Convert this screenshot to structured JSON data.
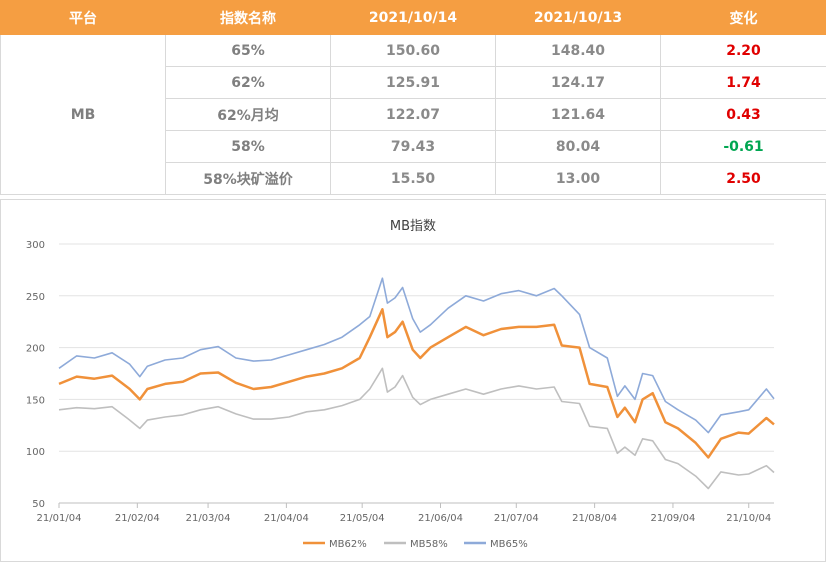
{
  "table": {
    "headers": [
      "平台",
      "指数名称",
      "2021/10/14",
      "2021/10/13",
      "变化"
    ],
    "platform": "MB",
    "rows": [
      {
        "name": "65%",
        "v1": "150.60",
        "v2": "148.40",
        "chg": "2.20",
        "dir": "up"
      },
      {
        "name": "62%",
        "v1": "125.91",
        "v2": "124.17",
        "chg": "1.74",
        "dir": "up"
      },
      {
        "name": "62%月均",
        "v1": "122.07",
        "v2": "121.64",
        "chg": "0.43",
        "dir": "up"
      },
      {
        "name": "58%",
        "v1": "79.43",
        "v2": "80.04",
        "chg": "-0.61",
        "dir": "down"
      },
      {
        "name": "58%块矿溢价",
        "v1": "15.50",
        "v2": "13.00",
        "chg": "2.50",
        "dir": "up"
      }
    ]
  },
  "colors": {
    "header_bg": "#f59e42",
    "up": "#e00000",
    "down": "#00a651",
    "mb62": "#f0913a",
    "mb58": "#bfbfbf",
    "mb65": "#8eaad9"
  },
  "chart_data": {
    "type": "line",
    "title": "MB指数",
    "x_tick_labels": [
      "21/01/04",
      "21/02/04",
      "21/03/04",
      "21/04/04",
      "21/05/04",
      "21/06/04",
      "21/07/04",
      "21/08/04",
      "21/09/04",
      "21/10/04"
    ],
    "x_range": [
      "2021-01-04",
      "2021-10-14"
    ],
    "ylim": [
      50,
      300
    ],
    "y_ticks": [
      50,
      100,
      150,
      200,
      250,
      300
    ],
    "grid": "horizontal",
    "legend_position": "bottom",
    "series": [
      {
        "name": "MB62%",
        "color": "#f0913a",
        "points": [
          [
            "2021-01-04",
            165
          ],
          [
            "2021-01-11",
            172
          ],
          [
            "2021-01-18",
            170
          ],
          [
            "2021-01-25",
            173
          ],
          [
            "2021-02-01",
            160
          ],
          [
            "2021-02-05",
            150
          ],
          [
            "2021-02-08",
            160
          ],
          [
            "2021-02-15",
            165
          ],
          [
            "2021-02-22",
            167
          ],
          [
            "2021-03-01",
            175
          ],
          [
            "2021-03-08",
            176
          ],
          [
            "2021-03-15",
            166
          ],
          [
            "2021-03-22",
            160
          ],
          [
            "2021-03-29",
            162
          ],
          [
            "2021-04-05",
            167
          ],
          [
            "2021-04-12",
            172
          ],
          [
            "2021-04-19",
            175
          ],
          [
            "2021-04-26",
            180
          ],
          [
            "2021-05-03",
            190
          ],
          [
            "2021-05-07",
            210
          ],
          [
            "2021-05-12",
            237
          ],
          [
            "2021-05-14",
            210
          ],
          [
            "2021-05-17",
            215
          ],
          [
            "2021-05-20",
            225
          ],
          [
            "2021-05-24",
            198
          ],
          [
            "2021-05-27",
            190
          ],
          [
            "2021-05-31",
            200
          ],
          [
            "2021-06-07",
            210
          ],
          [
            "2021-06-14",
            220
          ],
          [
            "2021-06-21",
            212
          ],
          [
            "2021-06-28",
            218
          ],
          [
            "2021-07-05",
            220
          ],
          [
            "2021-07-12",
            220
          ],
          [
            "2021-07-19",
            222
          ],
          [
            "2021-07-22",
            202
          ],
          [
            "2021-07-29",
            200
          ],
          [
            "2021-08-02",
            165
          ],
          [
            "2021-08-09",
            162
          ],
          [
            "2021-08-13",
            133
          ],
          [
            "2021-08-16",
            142
          ],
          [
            "2021-08-20",
            128
          ],
          [
            "2021-08-23",
            150
          ],
          [
            "2021-08-27",
            156
          ],
          [
            "2021-09-01",
            128
          ],
          [
            "2021-09-06",
            122
          ],
          [
            "2021-09-13",
            108
          ],
          [
            "2021-09-18",
            94
          ],
          [
            "2021-09-23",
            112
          ],
          [
            "2021-09-30",
            118
          ],
          [
            "2021-10-04",
            117
          ],
          [
            "2021-10-11",
            132
          ],
          [
            "2021-10-14",
            125.91
          ]
        ]
      },
      {
        "name": "MB58%",
        "color": "#bfbfbf",
        "points": [
          [
            "2021-01-04",
            140
          ],
          [
            "2021-01-11",
            142
          ],
          [
            "2021-01-18",
            141
          ],
          [
            "2021-01-25",
            143
          ],
          [
            "2021-02-01",
            130
          ],
          [
            "2021-02-05",
            122
          ],
          [
            "2021-02-08",
            130
          ],
          [
            "2021-02-15",
            133
          ],
          [
            "2021-02-22",
            135
          ],
          [
            "2021-03-01",
            140
          ],
          [
            "2021-03-08",
            143
          ],
          [
            "2021-03-15",
            136
          ],
          [
            "2021-03-22",
            131
          ],
          [
            "2021-03-29",
            131
          ],
          [
            "2021-04-05",
            133
          ],
          [
            "2021-04-12",
            138
          ],
          [
            "2021-04-19",
            140
          ],
          [
            "2021-04-26",
            144
          ],
          [
            "2021-05-03",
            150
          ],
          [
            "2021-05-07",
            160
          ],
          [
            "2021-05-12",
            180
          ],
          [
            "2021-05-14",
            157
          ],
          [
            "2021-05-17",
            162
          ],
          [
            "2021-05-20",
            173
          ],
          [
            "2021-05-24",
            152
          ],
          [
            "2021-05-27",
            145
          ],
          [
            "2021-05-31",
            150
          ],
          [
            "2021-06-07",
            155
          ],
          [
            "2021-06-14",
            160
          ],
          [
            "2021-06-21",
            155
          ],
          [
            "2021-06-28",
            160
          ],
          [
            "2021-07-05",
            163
          ],
          [
            "2021-07-12",
            160
          ],
          [
            "2021-07-19",
            162
          ],
          [
            "2021-07-22",
            148
          ],
          [
            "2021-07-29",
            146
          ],
          [
            "2021-08-02",
            124
          ],
          [
            "2021-08-09",
            122
          ],
          [
            "2021-08-13",
            98
          ],
          [
            "2021-08-16",
            104
          ],
          [
            "2021-08-20",
            96
          ],
          [
            "2021-08-23",
            112
          ],
          [
            "2021-08-27",
            110
          ],
          [
            "2021-09-01",
            92
          ],
          [
            "2021-09-06",
            88
          ],
          [
            "2021-09-13",
            76
          ],
          [
            "2021-09-18",
            64
          ],
          [
            "2021-09-23",
            80
          ],
          [
            "2021-09-30",
            77
          ],
          [
            "2021-10-04",
            78
          ],
          [
            "2021-10-11",
            86
          ],
          [
            "2021-10-14",
            79.43
          ]
        ]
      },
      {
        "name": "MB65%",
        "color": "#8eaad9",
        "points": [
          [
            "2021-01-04",
            180
          ],
          [
            "2021-01-11",
            192
          ],
          [
            "2021-01-18",
            190
          ],
          [
            "2021-01-25",
            195
          ],
          [
            "2021-02-01",
            184
          ],
          [
            "2021-02-05",
            172
          ],
          [
            "2021-02-08",
            182
          ],
          [
            "2021-02-15",
            188
          ],
          [
            "2021-02-22",
            190
          ],
          [
            "2021-03-01",
            198
          ],
          [
            "2021-03-08",
            201
          ],
          [
            "2021-03-15",
            190
          ],
          [
            "2021-03-22",
            187
          ],
          [
            "2021-03-29",
            188
          ],
          [
            "2021-04-05",
            193
          ],
          [
            "2021-04-12",
            198
          ],
          [
            "2021-04-19",
            203
          ],
          [
            "2021-04-26",
            210
          ],
          [
            "2021-05-03",
            222
          ],
          [
            "2021-05-07",
            230
          ],
          [
            "2021-05-12",
            267
          ],
          [
            "2021-05-14",
            243
          ],
          [
            "2021-05-17",
            248
          ],
          [
            "2021-05-20",
            258
          ],
          [
            "2021-05-24",
            228
          ],
          [
            "2021-05-27",
            215
          ],
          [
            "2021-05-31",
            222
          ],
          [
            "2021-06-07",
            238
          ],
          [
            "2021-06-14",
            250
          ],
          [
            "2021-06-21",
            245
          ],
          [
            "2021-06-28",
            252
          ],
          [
            "2021-07-05",
            255
          ],
          [
            "2021-07-12",
            250
          ],
          [
            "2021-07-19",
            257
          ],
          [
            "2021-07-22",
            250
          ],
          [
            "2021-07-29",
            232
          ],
          [
            "2021-08-02",
            200
          ],
          [
            "2021-08-09",
            190
          ],
          [
            "2021-08-13",
            153
          ],
          [
            "2021-08-16",
            163
          ],
          [
            "2021-08-20",
            150
          ],
          [
            "2021-08-23",
            175
          ],
          [
            "2021-08-27",
            173
          ],
          [
            "2021-09-01",
            148
          ],
          [
            "2021-09-06",
            140
          ],
          [
            "2021-09-13",
            130
          ],
          [
            "2021-09-18",
            118
          ],
          [
            "2021-09-23",
            135
          ],
          [
            "2021-09-30",
            138
          ],
          [
            "2021-10-04",
            140
          ],
          [
            "2021-10-11",
            160
          ],
          [
            "2021-10-14",
            150.6
          ]
        ]
      }
    ]
  }
}
